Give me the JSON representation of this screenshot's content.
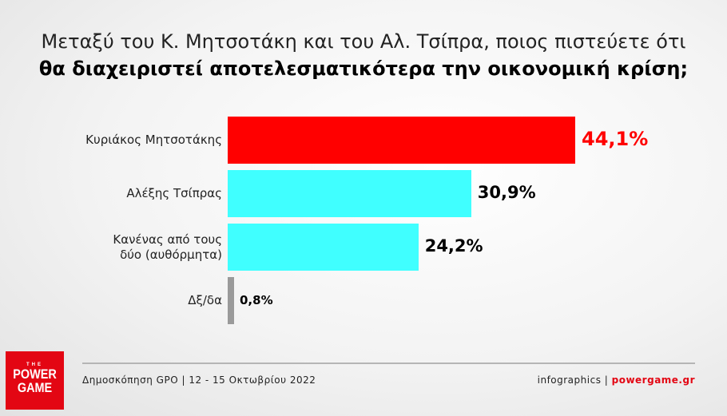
{
  "title": {
    "line1": "Μεταξύ του Κ. Μητσοτάκη και του Αλ. Τσίπρα, ποιος πιστεύετε ότι",
    "line2": "θα διαχειριστεί αποτελεσματικότερα την οικονομική κρίση;"
  },
  "chart_data": {
    "type": "bar",
    "orientation": "horizontal",
    "categories": [
      "Κυριάκος Μητσοτάκης",
      "Αλέξης Τσίπρας",
      "Κανένας από τους δύο (αυθόρμητα)",
      "Δξ/δα"
    ],
    "values": [
      44.1,
      30.9,
      24.2,
      0.8
    ],
    "value_labels": [
      "44,1%",
      "30,9%",
      "24,2%",
      "0,8%"
    ],
    "colors": [
      "#ff0000",
      "#40ffff",
      "#40ffff",
      "#9a9a9a"
    ],
    "label_colors": [
      "#ff0000",
      "#000000",
      "#000000",
      "#000000"
    ],
    "unit": "%",
    "grid": false
  },
  "footer": {
    "source": "Δημοσκόπηση GPO | 12 - 15 Οκτωβρίου 2022",
    "credit_prefix": "infographics | ",
    "credit_site": "powergame.gr",
    "logo": {
      "the": "THE",
      "power": "POWER",
      "game": "GAME"
    }
  }
}
